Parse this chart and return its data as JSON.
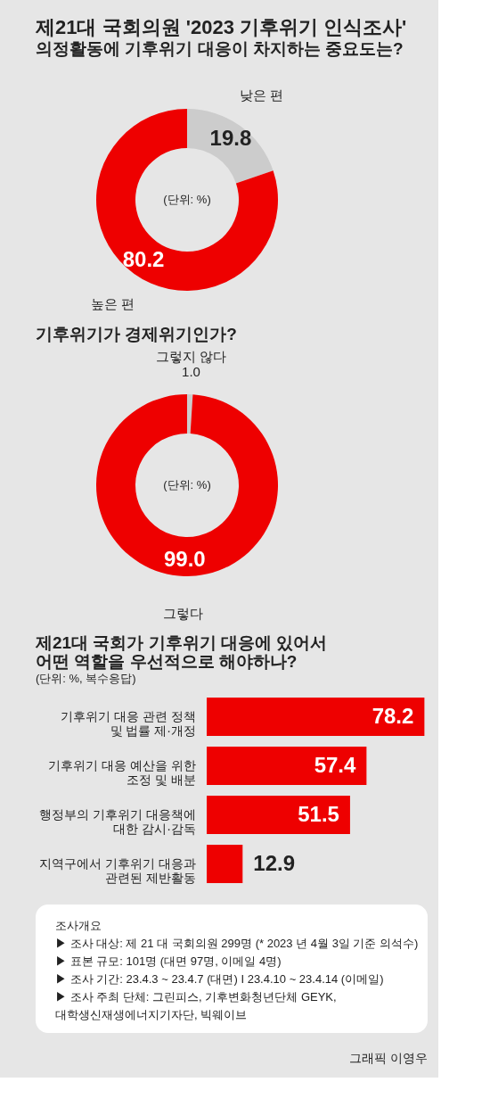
{
  "chart_data": [
    {
      "type": "donut",
      "title": "제21대 국회의원 '2023 기후위기 인식조사'",
      "subtitle": "의정활동에 기후위기 대응이 차지하는 중요도는?",
      "categories": [
        "낮은 편",
        "높은 편"
      ],
      "values": [
        19.8,
        80.2
      ],
      "colors": [
        "#cccccc",
        "#ee0000"
      ],
      "data_labels": true,
      "value_labels": [
        "19.8",
        "80.2"
      ],
      "annotations": [
        "(단위: %)"
      ]
    },
    {
      "type": "donut",
      "title": "기후위기가 경제위기인가?",
      "categories": [
        "그렇지 않다",
        "그렇다"
      ],
      "values": [
        1.0,
        99.0
      ],
      "colors": [
        "#cccccc",
        "#ee0000"
      ],
      "data_labels": true,
      "value_labels": [
        "1.0",
        "99.0"
      ],
      "annotations": [
        "(단위: %)"
      ]
    },
    {
      "type": "bar",
      "orientation": "horizontal",
      "title": "제21대 국회가 기후위기 대응에 있어서\n어떤 역할을 우선적으로 해야하나?",
      "subtitle": "(단위: %, 복수응답)",
      "categories": [
        "기후위기 대응 관련 정책\n및 법률 제·개정",
        "기후위기 대응 예산을 위한\n조정 및 배분",
        "행정부의 기후위기 대응책에\n대한 감시·감독",
        "지역구에서 기후위기 대응과\n관련된 제반활동"
      ],
      "values": [
        78.2,
        57.4,
        51.5,
        12.9
      ],
      "color": "#ee0000",
      "data_labels": true,
      "tick_labels": "y",
      "annotations": [
        "조사개요",
        "▶ 조사 대상: 제 21 대 국회의원 299명 (* 2023 년 4월 3일 기준 의석수)",
        "▶ 표본 규모: 101명 (대면 97명, 이메일 4명)",
        "▶ 조사 기간: 23.4.3 ~ 23.4.7 (대면) I 23.4.10 ~ 23.4.14 (이메일)",
        "▶ 조사 주최 단체: 그린피스, 기후변화청년단체 GEYK,\n                              대학생신재생에너지기자단, 빅웨이브",
        "그래픽 이영우"
      ]
    }
  ]
}
